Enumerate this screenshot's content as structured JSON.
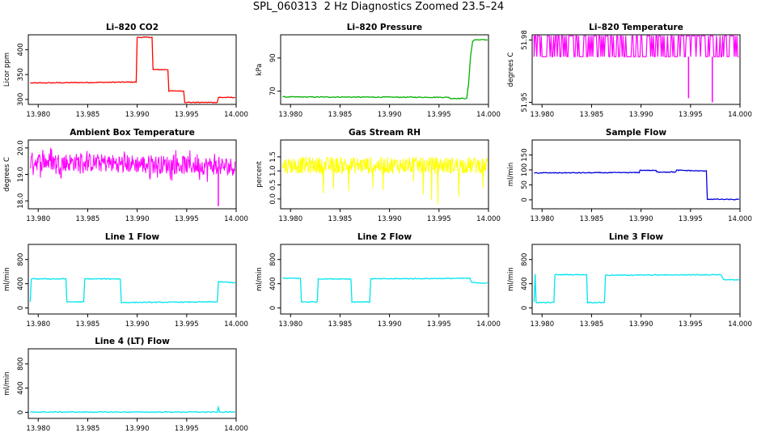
{
  "page_title": "SPL_060313  2 Hz Diagnostics Zoomed 23.5–24",
  "chart_data": [
    {
      "type": "line",
      "title": "Li–820 CO2",
      "ylabel": "Licor ppm",
      "color": "#ff0000",
      "xlim": [
        13.979,
        14.0
      ],
      "ylim": [
        290,
        430
      ],
      "xticks": [
        13.98,
        13.985,
        13.99,
        13.995,
        14.0
      ],
      "xticklabels": [
        "13.980",
        "13.985",
        "13.990",
        "13.995",
        "14.000"
      ],
      "yticks": [
        300,
        350,
        400
      ],
      "yticklabels": [
        "300",
        "350",
        "400"
      ],
      "series": [
        {
          "x": [
            13.9792,
            13.9899,
            13.99,
            13.9915,
            13.9916,
            13.9931,
            13.9932,
            13.9947,
            13.9948,
            13.9981,
            13.9982,
            13.9999
          ],
          "y": [
            333,
            335,
            425,
            425,
            360,
            360,
            317,
            317,
            294,
            294,
            304,
            304
          ]
        }
      ]
    },
    {
      "type": "line",
      "title": "Li–820 Pressure",
      "ylabel": "kPa",
      "color": "#00b000",
      "xlim": [
        13.979,
        14.0
      ],
      "ylim": [
        62,
        104
      ],
      "xticks": [
        13.98,
        13.985,
        13.99,
        13.995,
        14.0
      ],
      "xticklabels": [
        "13.980",
        "13.985",
        "13.990",
        "13.995",
        "14.000"
      ],
      "yticks": [
        70,
        90
      ],
      "yticklabels": [
        "70",
        "90"
      ],
      "series": [
        {
          "x": [
            13.9792,
            13.996,
            13.9961,
            13.9978,
            13.998,
            13.9982,
            13.9984,
            13.9986,
            13.9999
          ],
          "y": [
            66.5,
            66.3,
            65.6,
            65.6,
            75,
            92,
            100,
            101,
            101
          ]
        }
      ]
    },
    {
      "type": "line",
      "title": "Li–820 Temperature",
      "ylabel": "degrees C",
      "color": "#ff00ff",
      "xlim": [
        13.979,
        14.0
      ],
      "ylim": [
        51.949,
        51.9825
      ],
      "xticks": [
        13.98,
        13.985,
        13.99,
        13.995,
        14.0
      ],
      "xticklabels": [
        "13.980",
        "13.985",
        "13.990",
        "13.995",
        "14.000"
      ],
      "yticks": [
        51.95,
        51.98
      ],
      "yticklabels": [
        "51.95",
        "51.98"
      ],
      "values_levels": [
        51.972,
        51.982
      ],
      "dips": [
        {
          "x": 13.9948,
          "y": 51.952
        },
        {
          "x": 13.9972,
          "y": 51.95
        }
      ]
    },
    {
      "type": "line",
      "title": "Ambient Box Temperature",
      "ylabel": "degrees C",
      "color": "#ff00ff",
      "xlim": [
        13.979,
        14.0
      ],
      "ylim": [
        17.7,
        20.3
      ],
      "xticks": [
        13.98,
        13.985,
        13.99,
        13.995,
        14.0
      ],
      "xticklabels": [
        "13.980",
        "13.985",
        "13.990",
        "13.995",
        "14.000"
      ],
      "yticks": [
        18.0,
        19.0,
        20.0
      ],
      "yticklabels": [
        "18.0",
        "19.0",
        "20.0"
      ],
      "mean_start": 19.5,
      "mean_end": 19.3,
      "noise": 0.35,
      "dip": {
        "x": 13.9982,
        "y": 17.8
      }
    },
    {
      "type": "line",
      "title": "Gas Stream RH",
      "ylabel": "percent",
      "color": "#ffff00",
      "xlim": [
        13.979,
        14.0
      ],
      "ylim": [
        -0.35,
        2.1
      ],
      "xticks": [
        13.98,
        13.985,
        13.99,
        13.995,
        14.0
      ],
      "xticklabels": [
        "13.980",
        "13.985",
        "13.990",
        "13.995",
        "14.000"
      ],
      "yticks": [
        0.0,
        0.5,
        1.0,
        1.5
      ],
      "yticklabels": [
        "0.0",
        "0.5",
        "1.0",
        "1.5"
      ],
      "mean": 1.2,
      "noise": 0.3,
      "spike_min": -0.25
    },
    {
      "type": "line",
      "title": "Sample Flow",
      "ylabel": "ml/min",
      "color": "#0000dd",
      "xlim": [
        13.979,
        14.0
      ],
      "ylim": [
        -30,
        200
      ],
      "xticks": [
        13.98,
        13.985,
        13.99,
        13.995,
        14.0
      ],
      "xticklabels": [
        "13.980",
        "13.985",
        "13.990",
        "13.995",
        "14.000"
      ],
      "yticks": [
        0,
        50,
        100,
        150
      ],
      "yticklabels": [
        "0",
        "50",
        "100",
        "150"
      ],
      "series": [
        {
          "x": [
            13.9792,
            13.9898,
            13.9899,
            13.9915,
            13.9916,
            13.9935,
            13.9936,
            13.9966,
            13.9967,
            13.9999
          ],
          "y": [
            90,
            91,
            99,
            98,
            93,
            93,
            99,
            96,
            2,
            1
          ]
        }
      ]
    },
    {
      "type": "line",
      "title": "Line 1 Flow",
      "ylabel": "ml/min",
      "color": "#00e5ee",
      "xlim": [
        13.979,
        14.0
      ],
      "ylim": [
        -100,
        1050
      ],
      "xticks": [
        13.98,
        13.985,
        13.99,
        13.995,
        14.0
      ],
      "xticklabels": [
        "13.980",
        "13.985",
        "13.990",
        "13.995",
        "14.000"
      ],
      "yticks": [
        0,
        400,
        800
      ],
      "yticklabels": [
        "0",
        "400",
        "800"
      ],
      "series": [
        {
          "x": [
            13.9792,
            13.9793,
            13.9828,
            13.9829,
            13.9846,
            13.9847,
            13.9883,
            13.9884,
            13.9981,
            13.9982,
            13.9999
          ],
          "y": [
            100,
            480,
            480,
            100,
            100,
            480,
            480,
            90,
            100,
            430,
            420
          ]
        }
      ]
    },
    {
      "type": "line",
      "title": "Line 2 Flow",
      "ylabel": "ml/min",
      "color": "#00e5ee",
      "xlim": [
        13.979,
        14.0
      ],
      "ylim": [
        -100,
        1050
      ],
      "xticks": [
        13.98,
        13.985,
        13.99,
        13.995,
        14.0
      ],
      "xticklabels": [
        "13.980",
        "13.985",
        "13.990",
        "13.995",
        "14.000"
      ],
      "yticks": [
        0,
        400,
        800
      ],
      "yticklabels": [
        "0",
        "400",
        "800"
      ],
      "series": [
        {
          "x": [
            13.9792,
            13.981,
            13.9811,
            13.9827,
            13.9828,
            13.9861,
            13.9862,
            13.988,
            13.9881,
            13.9981,
            13.9983,
            13.9999
          ],
          "y": [
            490,
            490,
            100,
            100,
            480,
            480,
            100,
            100,
            480,
            490,
            420,
            410
          ]
        }
      ]
    },
    {
      "type": "line",
      "title": "Line 3 Flow",
      "ylabel": "ml/min",
      "color": "#00e5ee",
      "xlim": [
        13.979,
        14.0
      ],
      "ylim": [
        -100,
        1050
      ],
      "xticks": [
        13.98,
        13.985,
        13.99,
        13.995,
        14.0
      ],
      "xticklabels": [
        "13.980",
        "13.985",
        "13.990",
        "13.995",
        "14.000"
      ],
      "yticks": [
        0,
        400,
        800
      ],
      "yticklabels": [
        "0",
        "400",
        "800"
      ],
      "series": [
        {
          "x": [
            13.9792,
            13.9793,
            13.9794,
            13.9812,
            13.9813,
            13.9845,
            13.9846,
            13.9863,
            13.9864,
            13.9981,
            13.9983,
            13.9999
          ],
          "y": [
            100,
            560,
            90,
            90,
            550,
            550,
            90,
            90,
            540,
            550,
            470,
            460
          ]
        }
      ]
    },
    {
      "type": "line",
      "title": "Line 4 (LT) Flow",
      "ylabel": "ml/min",
      "color": "#00e5ee",
      "xlim": [
        13.979,
        14.0
      ],
      "ylim": [
        -100,
        1050
      ],
      "xticks": [
        13.98,
        13.985,
        13.99,
        13.995,
        14.0
      ],
      "xticklabels": [
        "13.980",
        "13.985",
        "13.990",
        "13.995",
        "14.000"
      ],
      "yticks": [
        0,
        400,
        800
      ],
      "yticklabels": [
        "0",
        "400",
        "800"
      ],
      "series": [
        {
          "x": [
            13.9792,
            13.9981,
            13.9982,
            13.9983,
            13.9999
          ],
          "y": [
            5,
            5,
            90,
            5,
            5
          ]
        }
      ]
    }
  ]
}
